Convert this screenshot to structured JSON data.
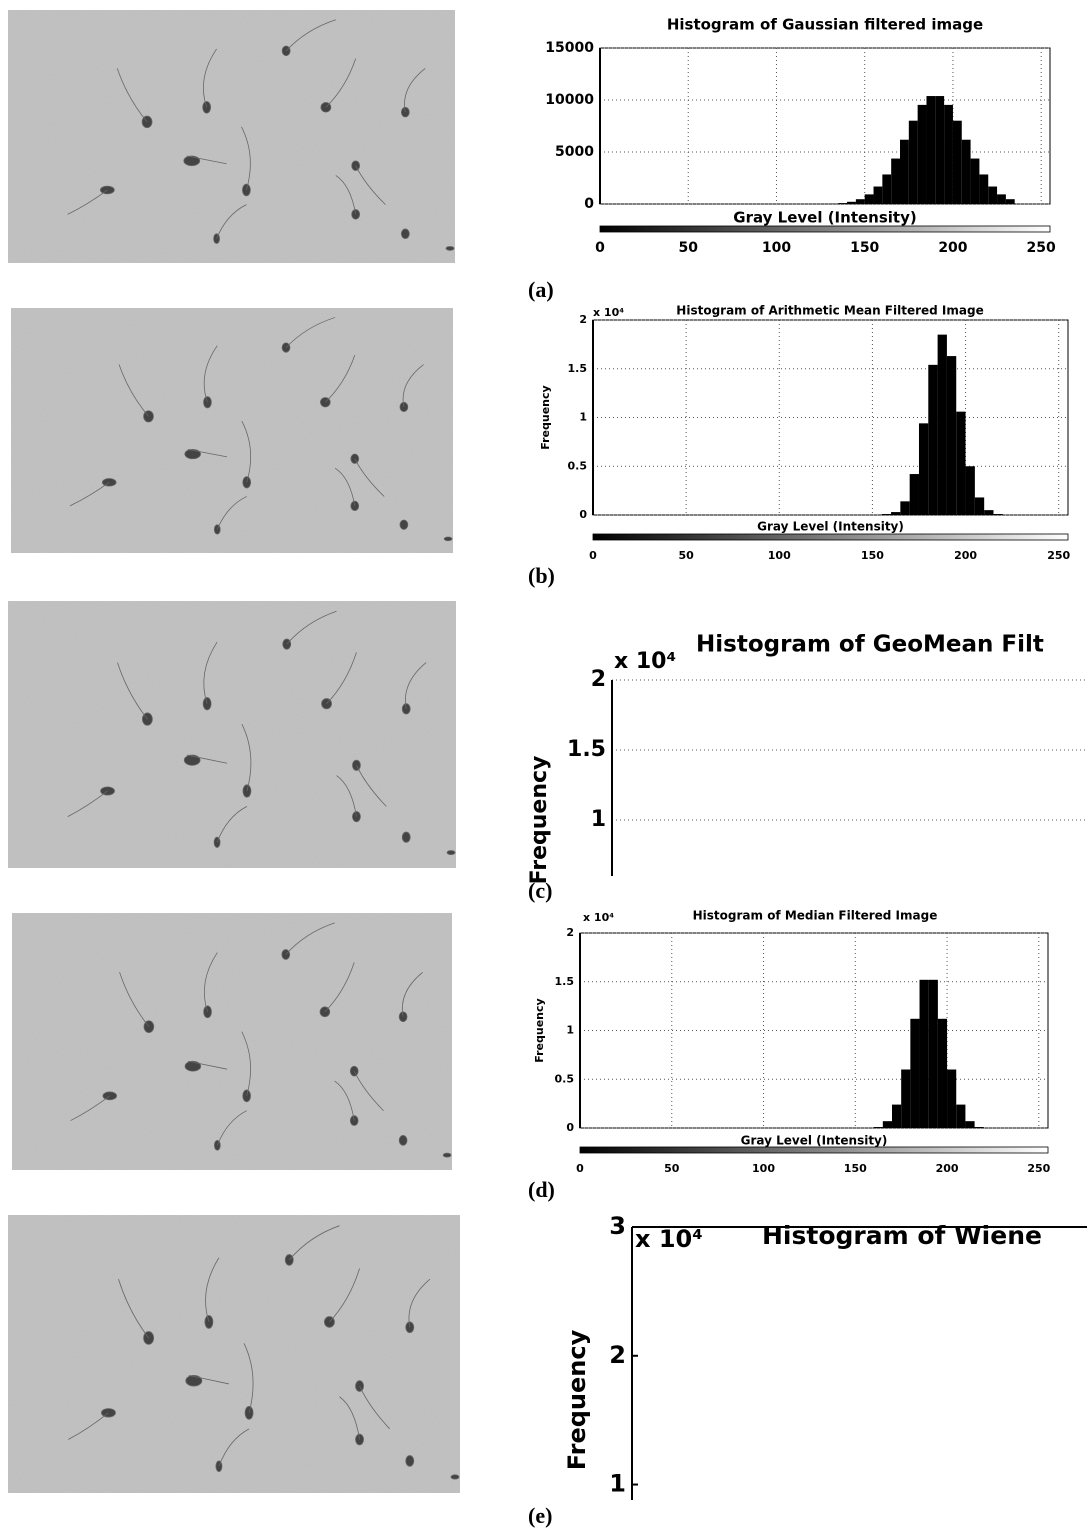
{
  "panel_labels": [
    "(a)",
    "(b)",
    "(c)",
    "(d)",
    "(e)"
  ],
  "chart_data": [
    {
      "type": "histogram",
      "title": "Histogram of Gaussian filtered image",
      "xlabel": "Gray Level (Intensity)",
      "xlim": [
        0,
        255
      ],
      "xticks": [
        0,
        50,
        100,
        150,
        200,
        250
      ],
      "ylim": [
        0,
        15000
      ],
      "yticks": [
        0,
        5000,
        10000,
        15000
      ],
      "grid": true,
      "color": "#000000",
      "bins": [
        120,
        125,
        130,
        135,
        140,
        145,
        150,
        155,
        160,
        165,
        170,
        175,
        180,
        185,
        190,
        195,
        200,
        205,
        210,
        215,
        220,
        225,
        230,
        235
      ],
      "values": [
        4,
        12,
        34,
        89,
        213,
        462,
        925,
        1680,
        2840,
        4370,
        6180,
        8010,
        9530,
        10380,
        10380,
        9530,
        8010,
        6180,
        4370,
        2840,
        1680,
        925,
        462
      ]
    },
    {
      "type": "histogram",
      "title": "Histogram of Arithmetic Mean Filtered Image",
      "xlabel": "Gray Level (Intensity)",
      "ylabel": "Frequency",
      "y_multiplier": "x 10⁴",
      "xlim": [
        0,
        255
      ],
      "xticks": [
        0,
        50,
        100,
        150,
        200,
        250
      ],
      "ylim": [
        0,
        2
      ],
      "yticks": [
        0,
        0.5,
        1,
        1.5,
        2
      ],
      "grid": true,
      "color": "#000000",
      "bins": [
        150,
        155,
        160,
        165,
        170,
        175,
        180,
        185,
        190,
        195,
        200,
        205,
        210,
        215,
        220,
        225,
        230
      ],
      "values": [
        0,
        0.01,
        0.03,
        0.14,
        0.42,
        0.94,
        1.54,
        1.85,
        1.63,
        1.06,
        0.5,
        0.18,
        0.05,
        0.01,
        0,
        0
      ]
    },
    {
      "type": "histogram",
      "title": "Histogram of GeoMean Filt",
      "ylabel": "Frequency",
      "y_multiplier": "x 10⁴",
      "ylim": [
        0.6,
        2
      ],
      "yticks": [
        1,
        1.5,
        2
      ],
      "grid": true,
      "color": "#000000"
    },
    {
      "type": "histogram",
      "title": "Histogram of Median Filtered Image",
      "xlabel": "Gray Level (Intensity)",
      "ylabel": "Frequency",
      "y_multiplier": "x 10⁴",
      "xlim": [
        0,
        255
      ],
      "xticks": [
        0,
        50,
        100,
        150,
        200,
        250
      ],
      "ylim": [
        0,
        2
      ],
      "yticks": [
        0,
        0.5,
        1,
        1.5,
        2
      ],
      "grid": true,
      "color": "#000000",
      "bins": [
        150,
        155,
        160,
        165,
        170,
        175,
        180,
        185,
        190,
        195,
        200,
        205,
        210,
        215,
        220,
        225,
        230
      ],
      "values": [
        0,
        0,
        0.01,
        0.07,
        0.24,
        0.6,
        1.12,
        1.52,
        1.52,
        1.12,
        0.6,
        0.24,
        0.07,
        0.01,
        0,
        0
      ]
    },
    {
      "type": "histogram",
      "title": "Histogram of Wiene",
      "ylabel": "Frequency",
      "y_multiplier": "x 10⁴",
      "ylim": [
        0.88,
        3
      ],
      "yticks": [
        1,
        2,
        3
      ],
      "grid": false,
      "color": "#000000"
    }
  ]
}
